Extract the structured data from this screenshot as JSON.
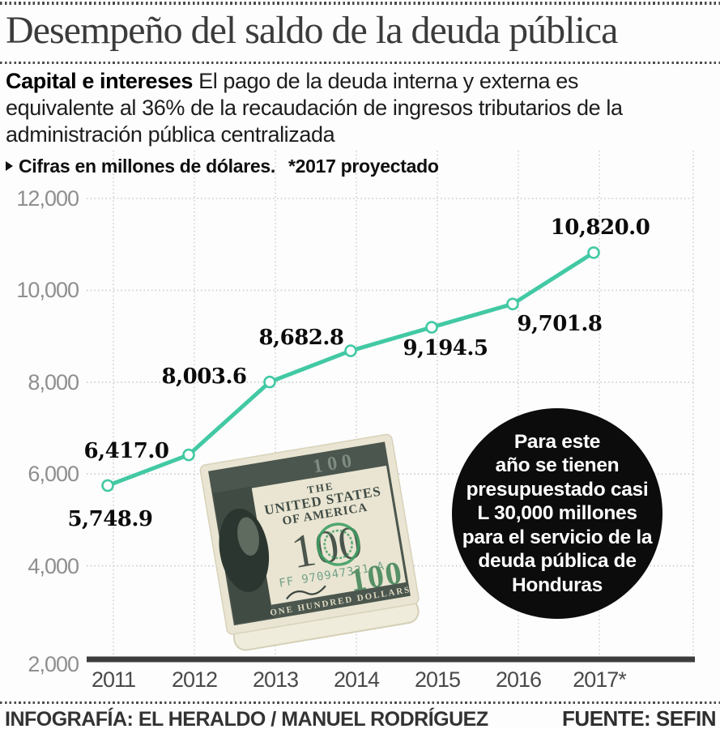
{
  "header": {
    "lead_bold": "Capital e intereses",
    "lead_rest": " El pago de la deuda interna y externa es equivalente al 36% de la recaudación de ingresos tributarios de la administración pública centralizada"
  },
  "chart_data": {
    "type": "line",
    "title": "Desempeño del saldo de la deuda pública",
    "units_note": "Cifras en millones de dólares.",
    "projection_note": "*2017 proyectado",
    "categories": [
      "2011",
      "2012",
      "2013",
      "2014",
      "2015",
      "2016",
      "2017*"
    ],
    "values": [
      5748.9,
      6417.0,
      8003.6,
      8682.8,
      9194.5,
      9701.8,
      10820.0
    ],
    "point_labels": [
      "5,748.9",
      "6,417.0",
      "8,003.6",
      "8,682.8",
      "9,194.5",
      "9,701.8",
      "10,820.0"
    ],
    "y_tick_values": [
      12000,
      10000,
      8000,
      6000,
      4000,
      2000
    ],
    "y_tick_labels": [
      "12,000",
      "10,000",
      "8,000",
      "6,000",
      "4,000",
      "2,000"
    ],
    "ylim": [
      2000,
      12000
    ],
    "xlabel": "",
    "ylabel": "",
    "grid": true,
    "legend": "none",
    "line_color": "#42c9a4",
    "marker": "open-circle"
  },
  "annotation": {
    "lines": [
      "Para este",
      "año se tienen",
      "presupuestado casi",
      "L 30,000 millones",
      "para el servicio de la",
      "deuda pública de",
      "Honduras"
    ],
    "bg_color": "#0c0c0c",
    "text_color": "#ffffff"
  },
  "bill": {
    "country_line1": "THE",
    "country_line2": "UNITED STATES",
    "country_line3": "OF AMERICA",
    "band_value": "100",
    "big_value": "100",
    "serial": "FF 970947321 A",
    "bottom_text": "ONE HUNDRED DOLLARS",
    "corner_value": "100"
  },
  "footer": {
    "credit": "INFOGRAFÍA: EL HERALDO / MANUEL RODRÍGUEZ",
    "source": "FUENTE: SEFIN"
  }
}
